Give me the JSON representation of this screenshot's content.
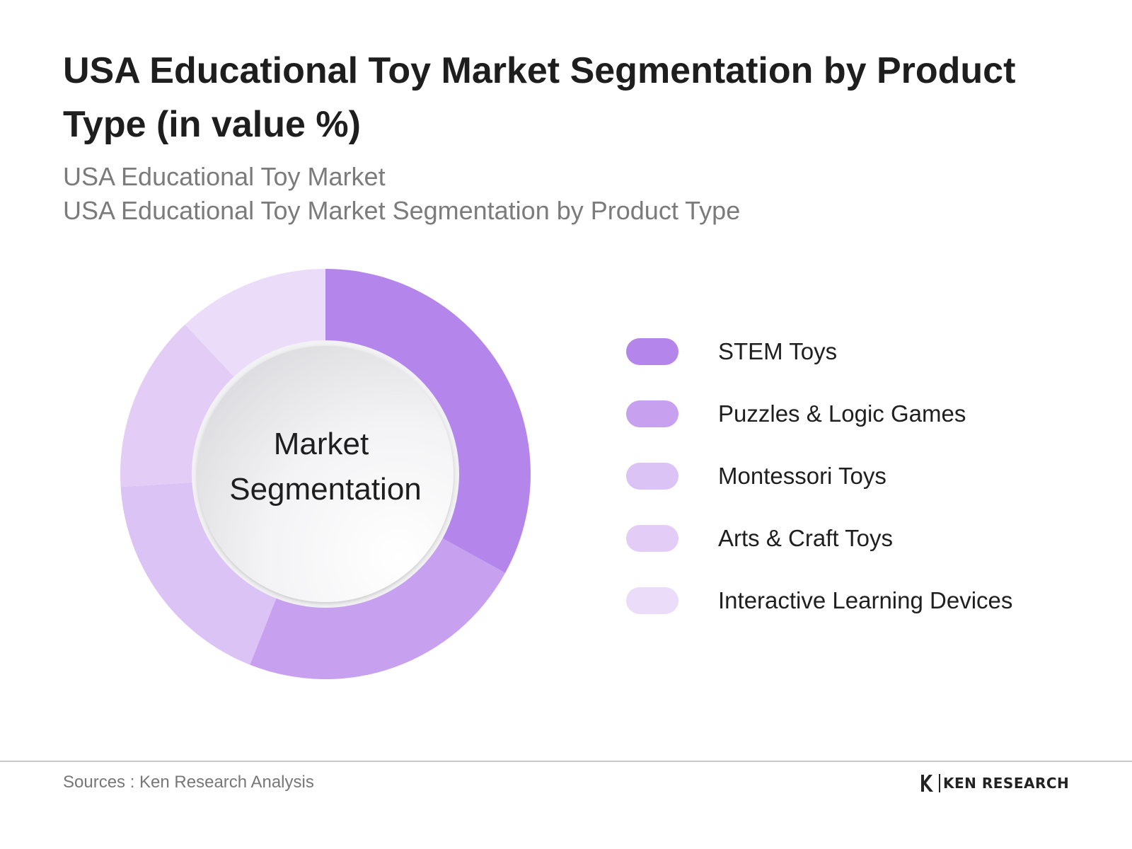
{
  "header": {
    "title": "USA Educational Toy Market Segmentation by Product Type (in value %)",
    "subtitle_line1": "USA Educational Toy Market",
    "subtitle_line2": "USA Educational Toy Market Segmentation by Product Type"
  },
  "chart_data": {
    "type": "pie",
    "donut": true,
    "center_label_line1": "Market",
    "center_label_line2": "Segmentation",
    "categories": [
      "STEM Toys",
      "Puzzles & Logic Games",
      "Montessori Toys",
      "Arts & Craft Toys",
      "Interactive Learning Devices"
    ],
    "values": [
      33,
      23,
      18,
      14,
      12
    ],
    "colors": [
      "#b486ec",
      "#c8a0f0",
      "#dbc3f6",
      "#e3cdf6",
      "#ebdcf9"
    ],
    "legend_position": "right"
  },
  "footer": {
    "source": "Sources : Ken Research Analysis",
    "brand": "KEN RESEARCH"
  }
}
